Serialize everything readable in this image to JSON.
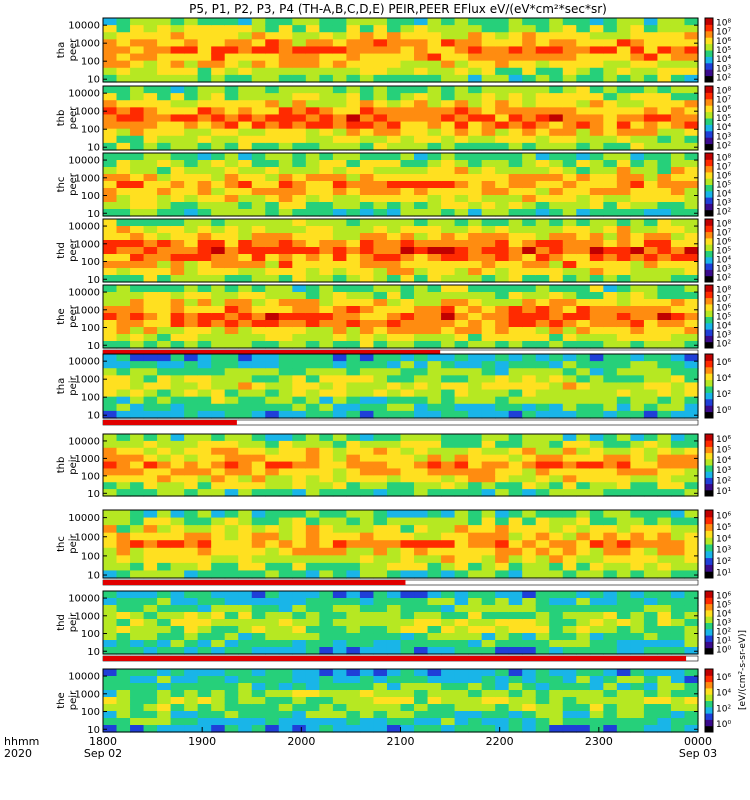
{
  "chart_data": {
    "type": "heatmap",
    "title": "P5, P1, P2, P3, P4 (TH-A,B,C,D,E) PEIR,PEER EFlux eV/(eV*cm²*sec*sr)",
    "x_axis": {
      "row_labels": [
        "hhmm",
        "2020"
      ],
      "ticks": [
        {
          "time": "1800",
          "date": "Sep 02"
        },
        {
          "time": "1900",
          "date": ""
        },
        {
          "time": "2000",
          "date": ""
        },
        {
          "time": "2100",
          "date": ""
        },
        {
          "time": "2200",
          "date": ""
        },
        {
          "time": "2300",
          "date": ""
        },
        {
          "time": "0000",
          "date": "Sep 03"
        }
      ],
      "range_hours": [
        18.0,
        24.0
      ]
    },
    "y_axis": {
      "scale": "log",
      "range": [
        7,
        25000
      ],
      "ticks": [
        "10",
        "100",
        "1000",
        "10000"
      ]
    },
    "colorbar_title": "[eV/(cm²-s-sr-eV)]",
    "colorscale": [
      "#000000",
      "#3a0a8c",
      "#1f3fd8",
      "#19b5e8",
      "#26d07a",
      "#b6e822",
      "#ffe020",
      "#ff8c10",
      "#ff2a00",
      "#c00000"
    ],
    "panels": [
      {
        "probe": "tha",
        "species": "peer",
        "label": "tha\npeer",
        "intensity": 0.78,
        "cb_ticks": [
          "10²",
          "10³",
          "10⁴",
          "10⁵",
          "10⁶",
          "10⁷",
          "10⁸"
        ],
        "status_bar": null
      },
      {
        "probe": "thb",
        "species": "peer",
        "label": "thb\npeer",
        "intensity": 0.8,
        "cb_ticks": [
          "10²",
          "10³",
          "10⁴",
          "10⁵",
          "10⁶",
          "10⁷",
          "10⁸"
        ],
        "status_bar": null
      },
      {
        "probe": "thc",
        "species": "peer",
        "label": "thc\npeer",
        "intensity": 0.74,
        "cb_ticks": [
          "10²",
          "10³",
          "10⁴",
          "10⁵",
          "10⁶",
          "10⁷",
          "10⁸"
        ],
        "status_bar": null
      },
      {
        "probe": "thd",
        "species": "peer",
        "label": "thd\npeer",
        "intensity": 0.84,
        "cb_ticks": [
          "10²",
          "10³",
          "10⁴",
          "10⁵",
          "10⁶",
          "10⁷",
          "10⁸"
        ],
        "status_bar": null
      },
      {
        "probe": "the",
        "species": "peer",
        "label": "the\npeer",
        "intensity": 0.8,
        "cb_ticks": [
          "10²",
          "10³",
          "10⁴",
          "10⁵",
          "10⁶",
          "10⁷",
          "10⁸"
        ],
        "status_bar": {
          "red_until_hours": 21.4
        }
      },
      {
        "probe": "tha",
        "species": "peir",
        "label": "tha\npeir",
        "intensity": 0.6,
        "cb_ticks": [
          "10⁰",
          "10²",
          "10⁴",
          "10⁶"
        ],
        "status_bar": {
          "red_until_hours": 19.35
        }
      },
      {
        "probe": "thb",
        "species": "peir",
        "label": "thb\npeir",
        "intensity": 0.76,
        "cb_ticks": [
          "10¹",
          "10²",
          "10³",
          "10⁴",
          "10⁵",
          "10⁶"
        ],
        "status_bar": null
      },
      {
        "probe": "thc",
        "species": "peir",
        "label": "thc\npeir",
        "intensity": 0.74,
        "cb_ticks": [
          "10¹",
          "10²",
          "10³",
          "10⁴",
          "10⁵",
          "10⁶"
        ],
        "status_bar": {
          "red_until_hours": 21.05
        }
      },
      {
        "probe": "thd",
        "species": "peir",
        "label": "thd\npeir",
        "intensity": 0.58,
        "cb_ticks": [
          "10⁰",
          "10¹",
          "10²",
          "10³",
          "10⁴",
          "10⁵",
          "10⁶"
        ],
        "status_bar": {
          "red_until_hours": 23.88
        }
      },
      {
        "probe": "the",
        "species": "peir",
        "label": "the\npeir",
        "intensity": 0.56,
        "cb_ticks": [
          "10⁰",
          "10²",
          "10⁴",
          "10⁶"
        ],
        "status_bar": null
      }
    ]
  }
}
